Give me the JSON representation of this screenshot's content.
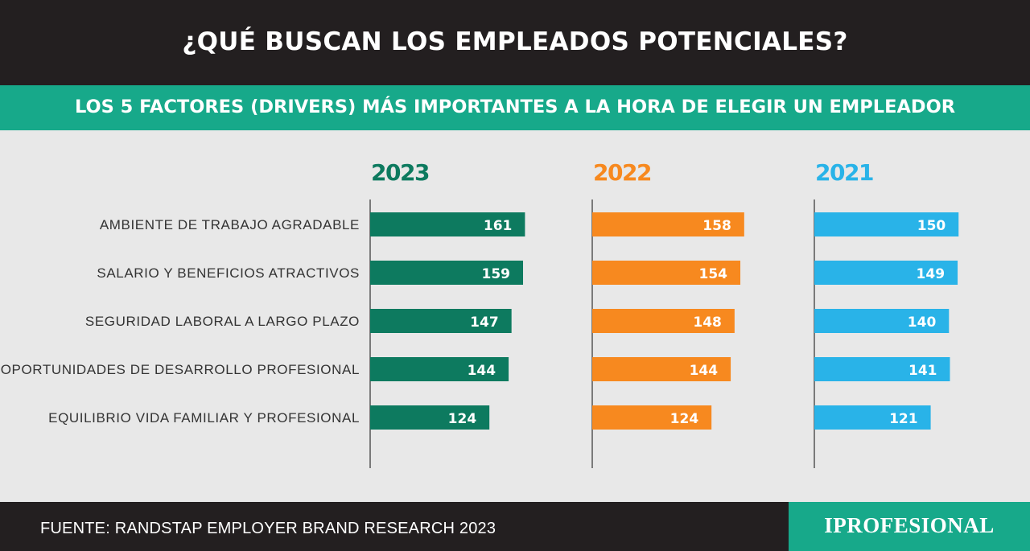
{
  "header": {
    "title": "¿QUÉ BUSCAN LOS EMPLEADOS POTENCIALES?",
    "subtitle": "LOS 5 FACTORES (DRIVERS) MÁS IMPORTANTES A LA HORA DE ELEGIR UN EMPLEADOR"
  },
  "colors": {
    "header_bg": "#231f20",
    "accent_teal": "#17a98a",
    "series_2023": "#0d7a5f",
    "series_2022": "#f7891f",
    "series_2021": "#29b3e8"
  },
  "chart_data": {
    "type": "bar",
    "orientation": "horizontal",
    "categories": [
      "AMBIENTE DE TRABAJO AGRADABLE",
      "SALARIO Y BENEFICIOS ATRACTIVOS",
      "SEGURIDAD LABORAL A LARGO PLAZO",
      "OPORTUNIDADES DE DESARROLLO PROFESIONAL",
      "EQUILIBRIO VIDA FAMILIAR Y PROFESIONAL"
    ],
    "series": [
      {
        "name": "2023",
        "color": "#0d7a5f",
        "values": [
          161,
          159,
          147,
          144,
          124
        ]
      },
      {
        "name": "2022",
        "color": "#f7891f",
        "values": [
          158,
          154,
          148,
          144,
          124
        ]
      },
      {
        "name": "2021",
        "color": "#29b3e8",
        "values": [
          150,
          149,
          140,
          141,
          121
        ]
      }
    ],
    "xlim": [
      0,
      240
    ],
    "grid": false,
    "data_labels": true
  },
  "footer": {
    "source": "FUENTE: RANDSTAP EMPLOYER BRAND RESEARCH 2023",
    "logo": "IPROFESIONAL"
  }
}
